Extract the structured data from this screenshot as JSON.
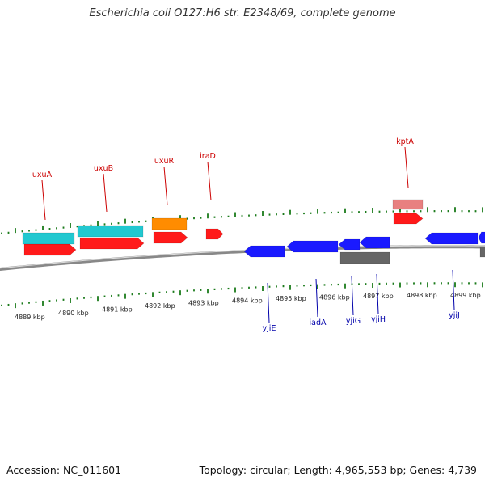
{
  "title": "Escherichia coli O127:H6 str. E2348/69, complete genome",
  "footer": {
    "accession": "Accession: NC_011601",
    "summary": "Topology: circular; Length: 4,965,553 bp; Genes: 4,739"
  },
  "colors": {
    "forward_gene": "#ff1a1a",
    "reverse_gene": "#1a1aff",
    "forward_label": "#cc0000",
    "reverse_label": "#0000aa",
    "cyan_feature": "#22c8d0",
    "orange_feature": "#ff8c00",
    "pink_feature": "#e88080",
    "gray_feature": "#666666",
    "backbone": "#888888",
    "ticks": "#1a7a1a"
  },
  "scale": {
    "unit": "kbp",
    "labels": [
      "4889 kbp",
      "4890 kbp",
      "4891 kbp",
      "4892 kbp",
      "4893 kbp",
      "4894 kbp",
      "4895 kbp",
      "4896 kbp",
      "4897 kbp",
      "4898 kbp",
      "4899 kbp"
    ]
  },
  "genes": {
    "forward": [
      "uxuA",
      "uxuB",
      "uxuR",
      "iraD",
      "kptA"
    ],
    "reverse": [
      "yjiE",
      "iadA",
      "yjiG",
      "yjiH",
      "yjiJ"
    ]
  }
}
